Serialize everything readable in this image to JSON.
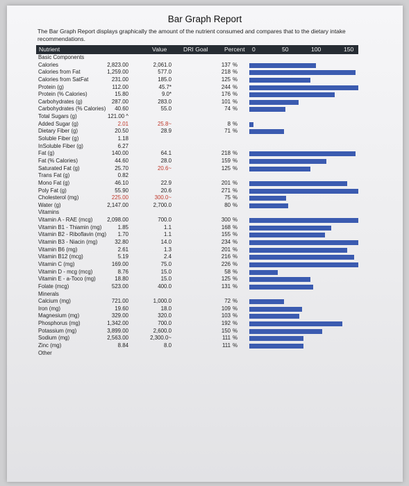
{
  "title": "Bar Graph Report",
  "description": "The Bar Graph Report displays graphically the amount of the nutrient consumed and compares that to the dietary intake recommendations.",
  "header": {
    "nutrient": "Nutrient",
    "value": "Value",
    "dri_goal": "DRI Goal",
    "percent": "Percent",
    "s0": "0",
    "s50": "50",
    "s100": "100",
    "s150": "150"
  },
  "rows": [
    {
      "name": "Basic Components",
      "section": true
    },
    {
      "name": "Calories",
      "value": "2,823.00",
      "goal": "2,061.0",
      "pct": "137",
      "sym": "%",
      "bar": 137
    },
    {
      "name": "Calories from Fat",
      "value": "1,259.00",
      "goal": "577.0",
      "pct": "218",
      "sym": "%",
      "bar": 218
    },
    {
      "name": "Calories from SatFat",
      "value": "231.00",
      "goal": "185.0",
      "pct": "125",
      "sym": "%",
      "bar": 125
    },
    {
      "name": "Protein (g)",
      "value": "112.00",
      "goal": "45.7*",
      "pct": "244",
      "sym": "%",
      "bar": 244
    },
    {
      "name": "Protein (% Calories)",
      "value": "15.80",
      "goal": "9.0*",
      "pct": "176",
      "sym": "%",
      "bar": 176
    },
    {
      "name": "Carbohydrates (g)",
      "value": "287.00",
      "goal": "283.0",
      "pct": "101",
      "sym": "%",
      "bar": 101
    },
    {
      "name": "Carbohydrates (% Calories)",
      "value": "40.60",
      "goal": "55.0",
      "pct": "74",
      "sym": "%",
      "bar": 74
    },
    {
      "name": "Total Sugars (g)",
      "value": "121.00 ^",
      "goal": "",
      "pct": "",
      "sym": ""
    },
    {
      "name": "Added Sugar (g)",
      "value": "2.01",
      "goal": "25.8~",
      "pct": "8",
      "sym": "%",
      "bar": 8,
      "red": true
    },
    {
      "name": "Dietary Fiber (g)",
      "value": "20.50",
      "goal": "28.9",
      "pct": "71",
      "sym": "%",
      "bar": 71
    },
    {
      "name": "Soluble Fiber (g)",
      "value": "1.18",
      "goal": "",
      "pct": "",
      "sym": ""
    },
    {
      "name": "InSoluble Fiber (g)",
      "value": "6.27",
      "goal": "",
      "pct": "",
      "sym": ""
    },
    {
      "name": "Fat (g)",
      "value": "140.00",
      "goal": "64.1",
      "pct": "218",
      "sym": "%",
      "bar": 218
    },
    {
      "name": "Fat (% Calories)",
      "value": "44.60",
      "goal": "28.0",
      "pct": "159",
      "sym": "%",
      "bar": 159
    },
    {
      "name": "Saturated Fat (g)",
      "value": "25.70",
      "goal": "20.6~",
      "pct": "125",
      "sym": "%",
      "bar": 125,
      "redgoal": true
    },
    {
      "name": "Trans Fat (g)",
      "value": "0.82",
      "goal": "",
      "pct": "",
      "sym": ""
    },
    {
      "name": "Mono Fat (g)",
      "value": "46.10",
      "goal": "22.9",
      "pct": "201",
      "sym": "%",
      "bar": 201
    },
    {
      "name": "Poly Fat (g)",
      "value": "55.90",
      "goal": "20.6",
      "pct": "271",
      "sym": "%",
      "bar": 271
    },
    {
      "name": "Cholesterol (mg)",
      "value": "225.00",
      "goal": "300.0~",
      "pct": "75",
      "sym": "%",
      "bar": 75,
      "red": true
    },
    {
      "name": "Water (g)",
      "value": "2,147.00",
      "goal": "2,700.0",
      "pct": "80",
      "sym": "%",
      "bar": 80
    },
    {
      "name": "Vitamins",
      "section": true
    },
    {
      "name": "Vitamin A - RAE (mcg)",
      "value": "2,098.00",
      "goal": "700.0",
      "pct": "300",
      "sym": "%",
      "bar": 300
    },
    {
      "name": "Vitamin B1 - Thiamin (mg)",
      "value": "1.85",
      "goal": "1.1",
      "pct": "168",
      "sym": "%",
      "bar": 168
    },
    {
      "name": "Vitamin B2 - Riboflavin (mg)",
      "value": "1.70",
      "goal": "1.1",
      "pct": "155",
      "sym": "%",
      "bar": 155
    },
    {
      "name": "Vitamin B3 - Niacin (mg)",
      "value": "32.80",
      "goal": "14.0",
      "pct": "234",
      "sym": "%",
      "bar": 234
    },
    {
      "name": "Vitamin B6 (mg)",
      "value": "2.61",
      "goal": "1.3",
      "pct": "201",
      "sym": "%",
      "bar": 201
    },
    {
      "name": "Vitamin B12 (mcg)",
      "value": "5.19",
      "goal": "2.4",
      "pct": "216",
      "sym": "%",
      "bar": 216
    },
    {
      "name": "Vitamin C (mg)",
      "value": "169.00",
      "goal": "75.0",
      "pct": "226",
      "sym": "%",
      "bar": 226
    },
    {
      "name": "Vitamin D - mcg (mcg)",
      "value": "8.76",
      "goal": "15.0",
      "pct": "58",
      "sym": "%",
      "bar": 58
    },
    {
      "name": "Vitamin E - a-Toco (mg)",
      "value": "18.80",
      "goal": "15.0",
      "pct": "125",
      "sym": "%",
      "bar": 125
    },
    {
      "name": "Folate (mcg)",
      "value": "523.00",
      "goal": "400.0",
      "pct": "131",
      "sym": "%",
      "bar": 131
    },
    {
      "name": "Minerals",
      "section": true
    },
    {
      "name": "Calcium (mg)",
      "value": "721.00",
      "goal": "1,000.0",
      "pct": "72",
      "sym": "%",
      "bar": 72
    },
    {
      "name": "Iron (mg)",
      "value": "19.60",
      "goal": "18.0",
      "pct": "109",
      "sym": "%",
      "bar": 109
    },
    {
      "name": "Magnesium (mg)",
      "value": "329.00",
      "goal": "320.0",
      "pct": "103",
      "sym": "%",
      "bar": 103
    },
    {
      "name": "Phosphorus (mg)",
      "value": "1,342.00",
      "goal": "700.0",
      "pct": "192",
      "sym": "%",
      "bar": 192
    },
    {
      "name": "Potassium (mg)",
      "value": "3,899.00",
      "goal": "2,600.0",
      "pct": "150",
      "sym": "%",
      "bar": 150
    },
    {
      "name": "Sodium (mg)",
      "value": "2,563.00",
      "goal": "2,300.0~",
      "pct": "111",
      "sym": "%",
      "bar": 111
    },
    {
      "name": "Zinc (mg)",
      "value": "8.84",
      "goal": "8.0",
      "pct": "111",
      "sym": "%",
      "bar": 111
    },
    {
      "name": "Other",
      "section": true
    }
  ],
  "colors": {
    "bar": "#3b5bb0",
    "header": "#262c33",
    "red": "#c0392b"
  }
}
